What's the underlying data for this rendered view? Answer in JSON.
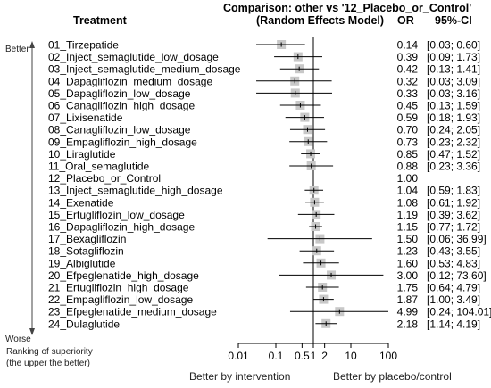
{
  "header": {
    "treatment_col": "Treatment",
    "comparison_line1": "Comparison: other vs '12_Placebo_or_Control'",
    "comparison_line2": "(Random Effects Model)",
    "or_col": "OR",
    "ci_col": "95%-CI"
  },
  "rank_axis": {
    "top": "Better",
    "bottom": "Worse",
    "caption_line1": "Ranking of superiority",
    "caption_line2": "(the upper the better)"
  },
  "footer": {
    "left": "Better by intervention",
    "right": "Better by placebo/control"
  },
  "colors": {
    "box": "#c8c8c8",
    "line": "#000000",
    "axis": "#000000"
  },
  "chart_data": {
    "type": "forest",
    "scale": "log10",
    "reference_value": 1,
    "xlim": [
      0.01,
      100
    ],
    "xticks": [
      0.01,
      0.1,
      0.5,
      1,
      2,
      10,
      100
    ],
    "xtick_labels": [
      "0.01",
      "0.1",
      "0.5",
      "1",
      "2",
      "10",
      "100"
    ],
    "studies": [
      {
        "label": "01_Tirzepatide",
        "or": 0.14,
        "ci": "[0.03; 0.60]",
        "lo": 0.03,
        "hi": 0.6
      },
      {
        "label": "02_Inject_semaglutide_low_dosage",
        "or": 0.39,
        "ci": "[0.09; 1.73]",
        "lo": 0.09,
        "hi": 1.73
      },
      {
        "label": "03_Inject_semaglutide_medium_dosage",
        "or": 0.42,
        "ci": "[0.13; 1.41]",
        "lo": 0.13,
        "hi": 1.41
      },
      {
        "label": "04_Dapagliflozin_medium_dosage",
        "or": 0.32,
        "ci": "[0.03; 3.09]",
        "lo": 0.03,
        "hi": 3.09
      },
      {
        "label": "05_Dapagliflozin_low_dosage",
        "or": 0.33,
        "ci": "[0.03; 3.16]",
        "lo": 0.03,
        "hi": 3.16
      },
      {
        "label": "06_Canagliflozin_high_dosage",
        "or": 0.45,
        "ci": "[0.13; 1.59]",
        "lo": 0.13,
        "hi": 1.59
      },
      {
        "label": "07_Lixisenatide",
        "or": 0.59,
        "ci": "[0.18; 1.93]",
        "lo": 0.18,
        "hi": 1.93
      },
      {
        "label": "08_Canagliflozin_low_dosage",
        "or": 0.7,
        "ci": "[0.24; 2.05]",
        "lo": 0.24,
        "hi": 2.05
      },
      {
        "label": "09_Empagliflozin_high_dosage",
        "or": 0.73,
        "ci": "[0.23; 2.32]",
        "lo": 0.23,
        "hi": 2.32
      },
      {
        "label": "10_Liraglutide",
        "or": 0.85,
        "ci": "[0.47; 1.52]",
        "lo": 0.47,
        "hi": 1.52
      },
      {
        "label": "11_Oral_semaglutide",
        "or": 0.88,
        "ci": "[0.23; 3.36]",
        "lo": 0.23,
        "hi": 3.36
      },
      {
        "label": "12_Placebo_or_Control",
        "or": 1.0,
        "ci": "",
        "lo": null,
        "hi": null
      },
      {
        "label": "13_Inject_semaglutide_high_dosage",
        "or": 1.04,
        "ci": "[0.59; 1.83]",
        "lo": 0.59,
        "hi": 1.83
      },
      {
        "label": "14_Exenatide",
        "or": 1.08,
        "ci": "[0.61; 1.92]",
        "lo": 0.61,
        "hi": 1.92
      },
      {
        "label": "15_Ertugliflozin_low_dosage",
        "or": 1.19,
        "ci": "[0.39; 3.62]",
        "lo": 0.39,
        "hi": 3.62
      },
      {
        "label": "16_Dapagliflozin_high_dosage",
        "or": 1.15,
        "ci": "[0.77; 1.72]",
        "lo": 0.77,
        "hi": 1.72
      },
      {
        "label": "17_Bexagliflozin",
        "or": 1.5,
        "ci": "[0.06; 36.99]",
        "lo": 0.06,
        "hi": 36.99
      },
      {
        "label": "18_Sotagliflozin",
        "or": 1.23,
        "ci": "[0.43; 3.55]",
        "lo": 0.43,
        "hi": 3.55
      },
      {
        "label": "19_Albiglutide",
        "or": 1.6,
        "ci": "[0.53; 4.83]",
        "lo": 0.53,
        "hi": 4.83
      },
      {
        "label": "20_Efpeglenatide_high_dosage",
        "or": 3.0,
        "ci": "[0.12; 73.60]",
        "lo": 0.12,
        "hi": 73.6
      },
      {
        "label": "21_Ertugliflozin_high_dosage",
        "or": 1.75,
        "ci": "[0.64; 4.79]",
        "lo": 0.64,
        "hi": 4.79
      },
      {
        "label": "22_Empagliflozin_low_dosage",
        "or": 1.87,
        "ci": "[1.00; 3.49]",
        "lo": 1.0,
        "hi": 3.49
      },
      {
        "label": "23_Efpeglenatide_medium_dosage",
        "or": 4.99,
        "ci": "[0.24; 104.01]",
        "lo": 0.24,
        "hi": 104.01
      },
      {
        "label": "24_Dulaglutide",
        "or": 2.18,
        "ci": "[1.14; 4.19]",
        "lo": 1.14,
        "hi": 4.19
      }
    ]
  }
}
